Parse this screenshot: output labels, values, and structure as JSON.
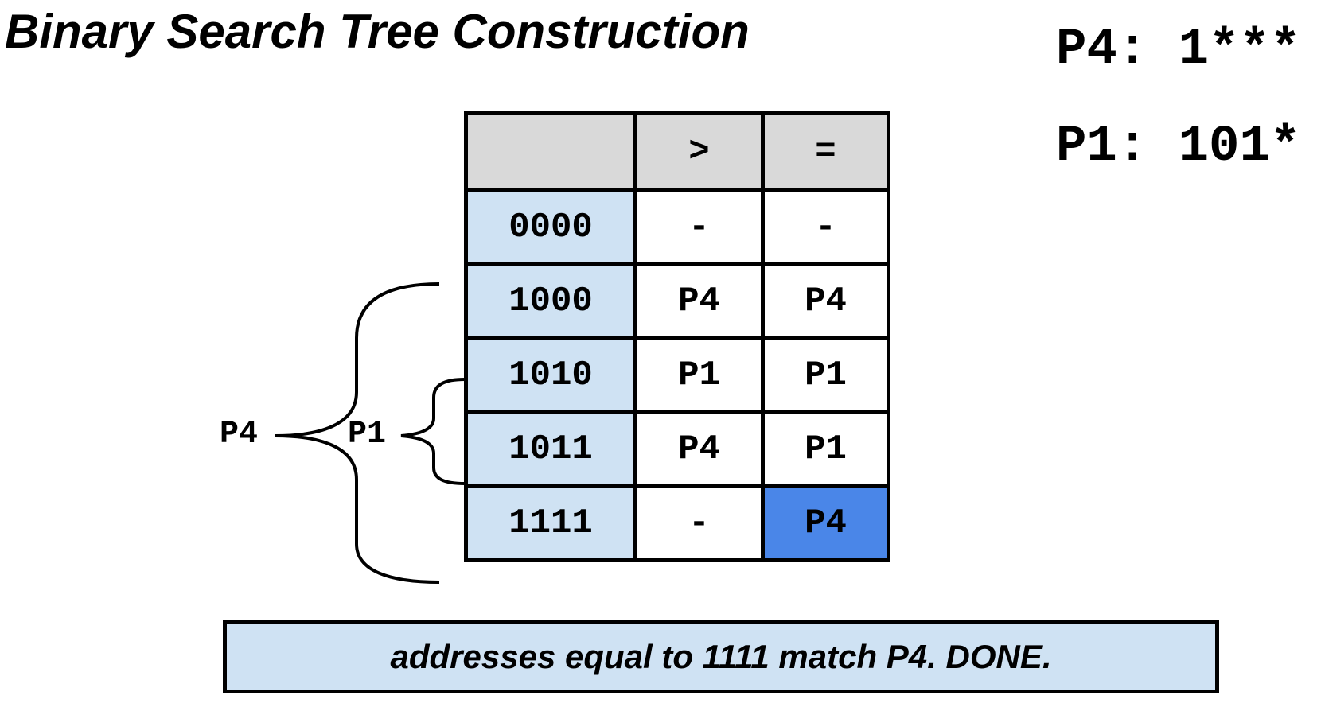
{
  "title": "Binary Search Tree Construction",
  "prefixes": [
    "P4: 1***",
    "P1: 101*"
  ],
  "table": {
    "header": [
      "",
      ">",
      "="
    ],
    "rows": [
      {
        "addr": "0000",
        "gt": "-",
        "eq": "-"
      },
      {
        "addr": "1000",
        "gt": "P4",
        "eq": "P4"
      },
      {
        "addr": "1010",
        "gt": "P1",
        "eq": "P1"
      },
      {
        "addr": "1011",
        "gt": "P4",
        "eq": "P1"
      },
      {
        "addr": "1111",
        "gt": "-",
        "eq": "P4"
      }
    ],
    "highlight_color": "#4a86e8",
    "address_cell_color": "#cfe2f3",
    "header_color": "#d9d9d9"
  },
  "braces": {
    "outer_label": "P4",
    "inner_label": "P1"
  },
  "caption": "addresses equal to 1111 match P4. DONE."
}
